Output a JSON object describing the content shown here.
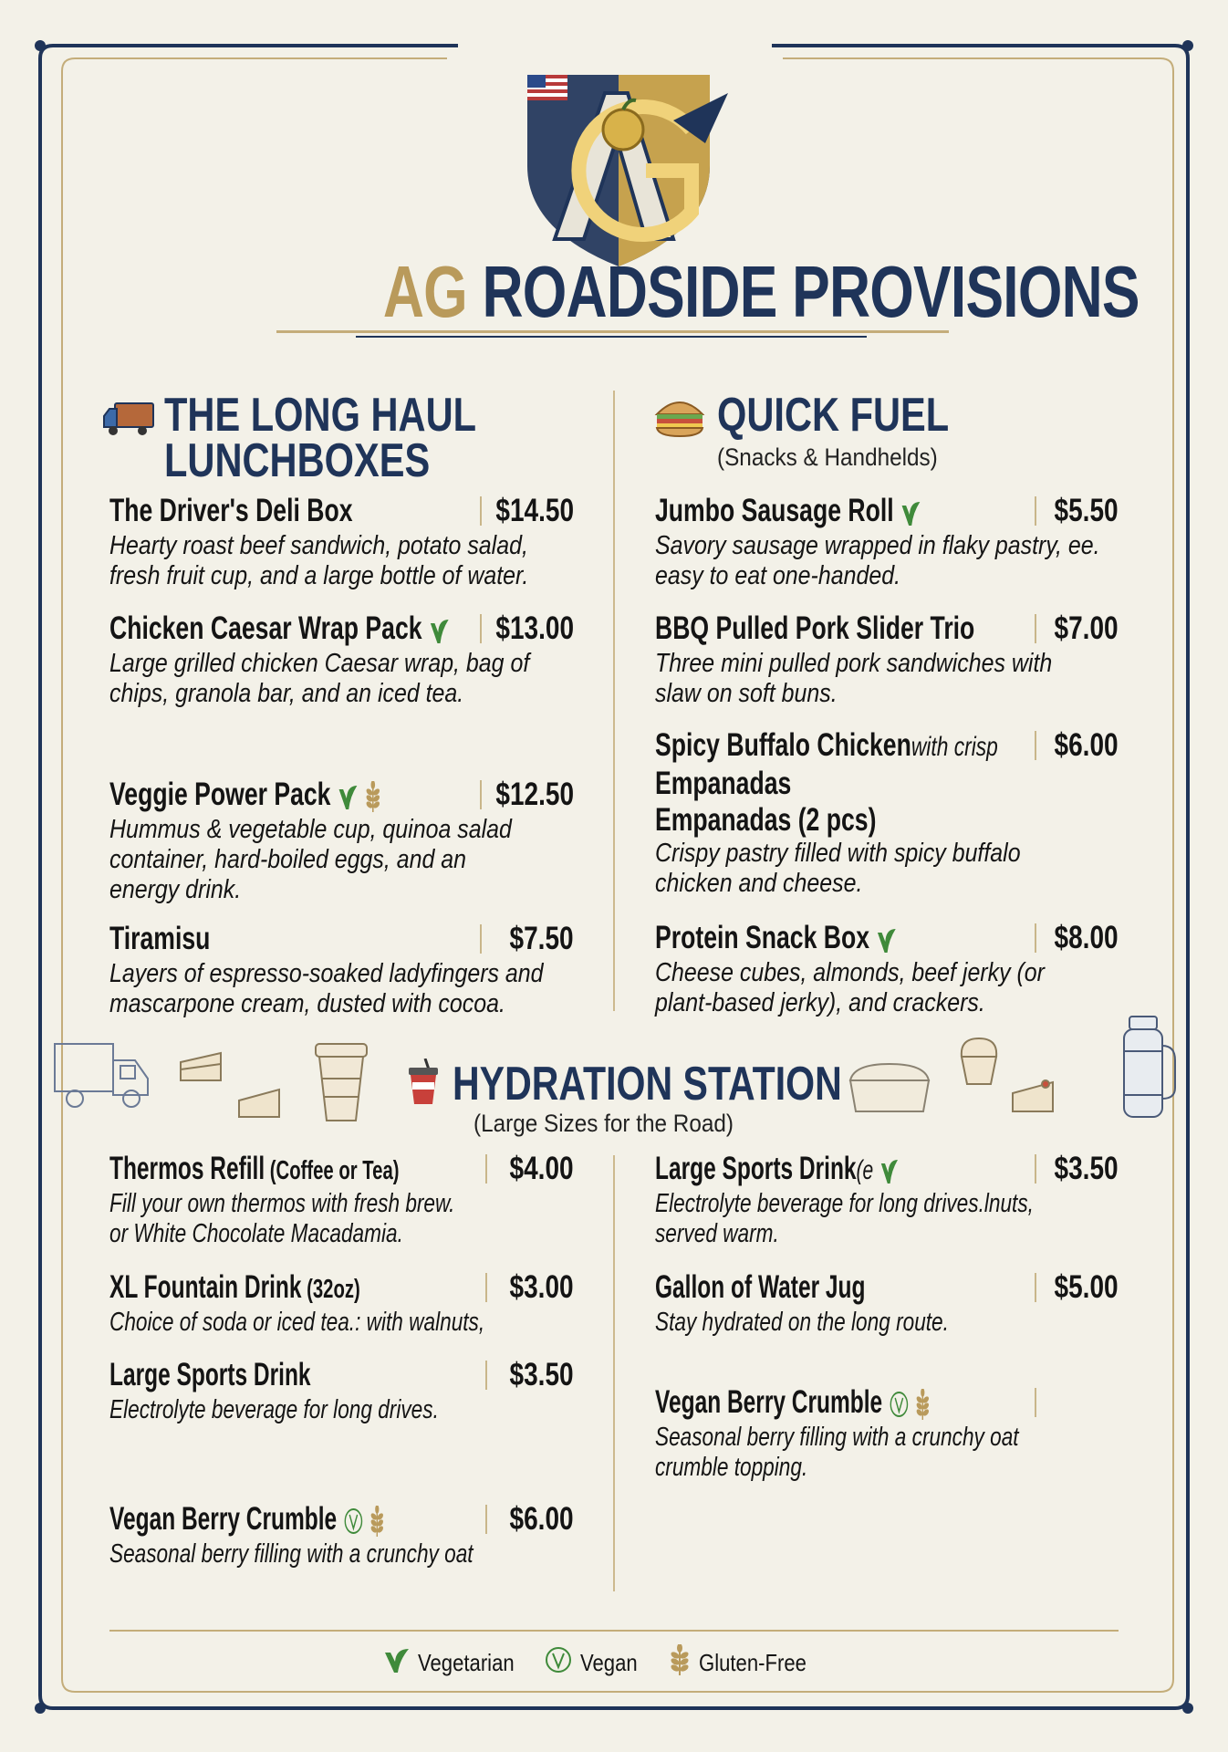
{
  "brand": {
    "logo_text": "AG",
    "title_accent": "AG",
    "title_main": "ROADSIDE PROVISIONS"
  },
  "colors": {
    "navy": "#1f3459",
    "gold": "#b99a5b",
    "vegetarian_green": "#3f8a3a",
    "background": "#f3f1e8"
  },
  "sections": {
    "long_haul": {
      "icon": "delivery-truck-icon",
      "title_line1": "THE LONG HAUL",
      "title_line2": "LUNCHBOXES",
      "items": [
        {
          "name": "The Driver's Deli Box",
          "price": "$14.50",
          "desc": [
            "Hearty roast beef sandwich, potato salad,",
            "fresh fruit cup, and a large bottle of water."
          ],
          "icons": []
        },
        {
          "name": "Chicken Caesar Wrap Pack",
          "price": "$13.00",
          "desc": [
            "Large grilled chicken Caesar wrap, bag of",
            "chips, granola bar, and an iced tea."
          ],
          "icons": [
            "leaf"
          ]
        },
        {
          "name": "Veggie Power Pack",
          "price": "$12.50",
          "desc": [
            "Hummus & vegetable cup, quinoa salad",
            "container, hard-boiled eggs, and an",
            "energy drink."
          ],
          "icons": [
            "leaf",
            "wheat"
          ]
        },
        {
          "name": "Tiramisu",
          "price": "$7.50",
          "desc": [
            "Layers of espresso-soaked ladyfingers and",
            "mascarpone cream, dusted with cocoa."
          ],
          "icons": []
        }
      ]
    },
    "quick_fuel": {
      "icon": "sandwich-icon",
      "title": "QUICK FUEL",
      "subtitle": "(Snacks & Handhelds)",
      "items": [
        {
          "name": "Jumbo Sausage Roll",
          "price": "$5.50",
          "desc": [
            "Savory sausage wrapped in flaky pastry, ee.",
            "easy to eat one-handed."
          ],
          "icons": [
            "leaf"
          ]
        },
        {
          "name": "BBQ Pulled Pork Slider Trio",
          "price": "$7.00",
          "desc": [
            "Three mini pulled pork sandwiches with",
            "slaw on soft buns."
          ],
          "icons": []
        },
        {
          "name": "Spicy Buffalo Chicken",
          "glitch": "with crisp",
          "extra_lines": [
            "Empanadas",
            "Empanadas (2 pcs)"
          ],
          "price": "$6.00",
          "desc": [
            "Crispy pastry filled with spicy buffalo",
            "chicken and cheese."
          ],
          "icons": []
        },
        {
          "name": "Protein Snack Box",
          "price": "$8.00",
          "desc": [
            "Cheese cubes, almonds, beef jerky (or",
            "plant-based jerky), and crackers."
          ],
          "icons": [
            "leaf"
          ]
        }
      ]
    },
    "hydration": {
      "icon": "soda-cup-icon",
      "title": "HYDRATION STATION",
      "subtitle": "(Large Sizes for the Road)",
      "left_items": [
        {
          "name": "Thermos Refill",
          "sub": "(Coffee or Tea)",
          "price": "$4.00",
          "desc": [
            "Fill your own thermos with fresh brew.",
            "or White Chocolate Macadamia."
          ],
          "icons": []
        },
        {
          "name": "XL Fountain Drink",
          "sub": "(32oz)",
          "price": "$3.00",
          "desc": [
            "Choice of soda or iced tea.: with walnuts,"
          ],
          "icons": []
        },
        {
          "name": "Large Sports Drink",
          "price": "$3.50",
          "desc": [
            "Electrolyte beverage for long drives."
          ],
          "icons": []
        },
        {
          "name": "Vegan Berry Crumble",
          "price": "$6.00",
          "desc": [
            "Seasonal berry filling with a crunchy oat"
          ],
          "icons": [
            "vegan",
            "wheat"
          ]
        }
      ],
      "right_items": [
        {
          "name": "Large Sports Drink",
          "glitch": "(e",
          "price": "$3.50",
          "desc": [
            "Electrolyte beverage for long drives.lnuts,",
            "served warm."
          ],
          "icons": [
            "leaf"
          ]
        },
        {
          "name": "Gallon of Water Jug",
          "price": "$5.00",
          "desc": [
            "Stay hydrated on the long route."
          ],
          "icons": []
        },
        {
          "name": "Vegan Berry Crumble",
          "price": "",
          "desc": [
            "Seasonal berry filling with a crunchy oat",
            "crumble topping."
          ],
          "icons": [
            "vegan",
            "wheat"
          ]
        }
      ]
    }
  },
  "legend": {
    "vegetarian": "Vegetarian",
    "vegan": "Vegan",
    "gluten_free": "Gluten-Free"
  }
}
